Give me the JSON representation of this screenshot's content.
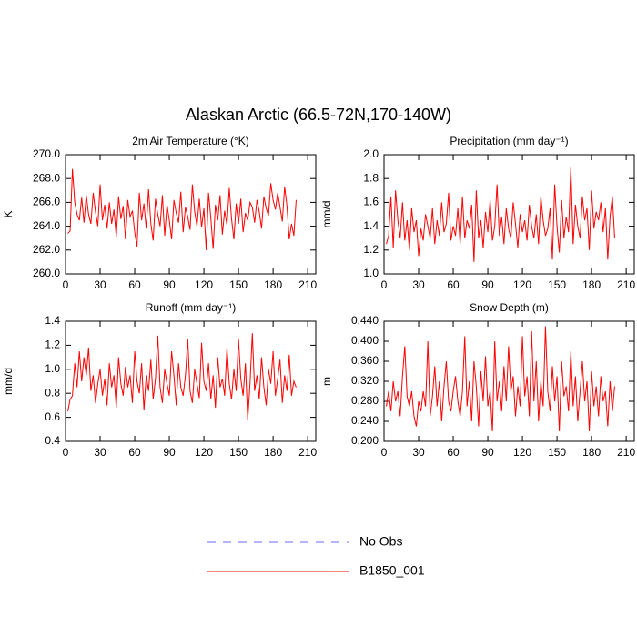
{
  "title": "Alaskan Arctic (66.5-72N,170-140W)",
  "legend": [
    {
      "name": "No Obs",
      "color": "#6a6aff",
      "dash": true
    },
    {
      "name": "B1850_001",
      "color": "#ff0000",
      "dash": false
    }
  ],
  "chart_data": [
    {
      "type": "line",
      "title": "2m Air Temperature (°K)",
      "ylabel": "K",
      "xlim": [
        0,
        217
      ],
      "xticks": [
        0,
        30,
        60,
        90,
        120,
        150,
        180,
        210
      ],
      "ylim": [
        260,
        270
      ],
      "yticks": [
        {
          "value": 260,
          "label": "260.0"
        },
        {
          "value": 262,
          "label": "262.0"
        },
        {
          "value": 264,
          "label": "264.0"
        },
        {
          "value": 266,
          "label": "266.0"
        },
        {
          "value": 268,
          "label": "268.0"
        },
        {
          "value": 270,
          "label": "270.0"
        }
      ],
      "x": [
        2,
        4,
        6,
        8,
        10,
        12,
        14,
        16,
        18,
        20,
        22,
        24,
        26,
        28,
        30,
        32,
        34,
        36,
        38,
        40,
        42,
        44,
        46,
        48,
        50,
        52,
        54,
        56,
        58,
        60,
        62,
        64,
        66,
        68,
        70,
        72,
        74,
        76,
        78,
        80,
        82,
        84,
        86,
        88,
        90,
        92,
        94,
        96,
        98,
        100,
        102,
        104,
        106,
        108,
        110,
        112,
        114,
        116,
        118,
        120,
        122,
        124,
        126,
        128,
        130,
        132,
        134,
        136,
        138,
        140,
        142,
        144,
        146,
        148,
        150,
        152,
        154,
        156,
        158,
        160,
        162,
        164,
        166,
        168,
        170,
        172,
        174,
        176,
        178,
        180,
        182,
        184,
        186,
        188,
        190,
        192,
        194,
        196,
        198,
        200
      ],
      "series": [
        {
          "color": "#ff0000",
          "values": [
            263.4,
            263.6,
            268.8,
            266.0,
            265.0,
            264.5,
            266.4,
            264.3,
            266.6,
            265.0,
            264.2,
            266.8,
            265.2,
            264.0,
            267.5,
            264.5,
            265.8,
            263.8,
            266.0,
            264.2,
            265.4,
            263.1,
            266.5,
            264.6,
            265.7,
            262.9,
            266.2,
            264.8,
            265.3,
            263.5,
            262.3,
            266.8,
            264.5,
            265.9,
            263.8,
            267.1,
            264.2,
            262.8,
            266.3,
            265.0,
            264.0,
            266.6,
            263.2,
            265.8,
            264.5,
            262.9,
            266.2,
            265.1,
            264.3,
            266.9,
            263.5,
            265.6,
            264.8,
            263.7,
            267.5,
            265.2,
            264.0,
            266.3,
            263.9,
            265.5,
            262.0,
            266.8,
            264.7,
            262.1,
            265.8,
            264.5,
            266.6,
            263.3,
            265.3,
            264.1,
            267.2,
            264.6,
            262.9,
            265.9,
            264.2,
            266.3,
            263.5,
            265.1,
            264.5,
            266.0,
            265.6,
            264.3,
            266.2,
            265.2,
            263.8,
            266.5,
            265.5,
            264.9,
            267.6,
            266.2,
            265.4,
            266.8,
            265.6,
            264.4,
            267.3,
            265.7,
            262.9,
            264.2,
            263.2,
            266.2
          ]
        }
      ]
    },
    {
      "type": "line",
      "title": "Precipitation (mm day⁻¹)",
      "ylabel": "mm/d",
      "xlim": [
        0,
        217
      ],
      "xticks": [
        0,
        30,
        60,
        90,
        120,
        150,
        180,
        210
      ],
      "ylim": [
        1,
        2
      ],
      "yticks": [
        {
          "value": 1,
          "label": "1.0"
        },
        1.2,
        1.4,
        1.6,
        1.8,
        {
          "value": 2,
          "label": "2.0"
        }
      ],
      "x": [
        2,
        4,
        6,
        8,
        10,
        12,
        14,
        16,
        18,
        20,
        22,
        24,
        26,
        28,
        30,
        32,
        34,
        36,
        38,
        40,
        42,
        44,
        46,
        48,
        50,
        52,
        54,
        56,
        58,
        60,
        62,
        64,
        66,
        68,
        70,
        72,
        74,
        76,
        78,
        80,
        82,
        84,
        86,
        88,
        90,
        92,
        94,
        96,
        98,
        100,
        102,
        104,
        106,
        108,
        110,
        112,
        114,
        116,
        118,
        120,
        122,
        124,
        126,
        128,
        130,
        132,
        134,
        136,
        138,
        140,
        142,
        144,
        146,
        148,
        150,
        152,
        154,
        156,
        158,
        160,
        162,
        164,
        166,
        168,
        170,
        172,
        174,
        176,
        178,
        180,
        182,
        184,
        186,
        188,
        190,
        192,
        194,
        196,
        198,
        200
      ],
      "series": [
        {
          "color": "#ff0000",
          "values": [
            1.25,
            1.32,
            1.65,
            1.22,
            1.7,
            1.45,
            1.3,
            1.6,
            1.28,
            1.45,
            1.2,
            1.55,
            1.35,
            1.45,
            1.15,
            1.38,
            1.28,
            1.5,
            1.4,
            1.3,
            1.55,
            1.25,
            1.45,
            1.32,
            1.6,
            1.35,
            1.42,
            1.68,
            1.28,
            1.4,
            1.32,
            1.55,
            1.25,
            1.65,
            1.3,
            1.45,
            1.38,
            1.58,
            1.1,
            1.7,
            1.3,
            1.45,
            1.22,
            1.52,
            1.35,
            1.62,
            1.28,
            1.4,
            1.75,
            1.32,
            1.48,
            1.25,
            1.55,
            1.38,
            1.3,
            1.6,
            1.42,
            1.22,
            1.5,
            1.35,
            1.45,
            1.28,
            1.58,
            1.4,
            1.3,
            1.5,
            1.25,
            1.65,
            1.45,
            1.32,
            1.38,
            1.55,
            1.12,
            1.75,
            1.4,
            1.18,
            1.62,
            1.3,
            1.48,
            1.35,
            1.9,
            1.25,
            1.58,
            1.4,
            1.3,
            1.65,
            1.45,
            1.55,
            1.2,
            1.7,
            1.38,
            1.52,
            1.45,
            1.6,
            1.35,
            1.55,
            1.12,
            1.48,
            1.65,
            1.3
          ]
        }
      ]
    },
    {
      "type": "line",
      "title": "Runoff (mm day⁻¹)",
      "ylabel": "mm/d",
      "xlim": [
        0,
        217
      ],
      "xticks": [
        0,
        30,
        60,
        90,
        120,
        150,
        180,
        210
      ],
      "ylim": [
        0.4,
        1.4
      ],
      "yticks": [
        0.4,
        0.6,
        0.8,
        {
          "value": 1,
          "label": "1.0"
        },
        1.2,
        1.4
      ],
      "x": [
        2,
        4,
        6,
        8,
        10,
        12,
        14,
        16,
        18,
        20,
        22,
        24,
        26,
        28,
        30,
        32,
        34,
        36,
        38,
        40,
        42,
        44,
        46,
        48,
        50,
        52,
        54,
        56,
        58,
        60,
        62,
        64,
        66,
        68,
        70,
        72,
        74,
        76,
        78,
        80,
        82,
        84,
        86,
        88,
        90,
        92,
        94,
        96,
        98,
        100,
        102,
        104,
        106,
        108,
        110,
        112,
        114,
        116,
        118,
        120,
        122,
        124,
        126,
        128,
        130,
        132,
        134,
        136,
        138,
        140,
        142,
        144,
        146,
        148,
        150,
        152,
        154,
        156,
        158,
        160,
        162,
        164,
        166,
        168,
        170,
        172,
        174,
        176,
        178,
        180,
        182,
        184,
        186,
        188,
        190,
        192,
        194,
        196,
        198,
        200
      ],
      "series": [
        {
          "color": "#ff0000",
          "values": [
            0.65,
            0.75,
            0.78,
            1.05,
            0.85,
            1.15,
            0.9,
            1.1,
            0.95,
            1.18,
            0.82,
            0.95,
            0.72,
            0.88,
            1.0,
            0.78,
            0.92,
            0.7,
            1.05,
            0.85,
            0.95,
            0.68,
            1.1,
            0.88,
            0.78,
            1.02,
            0.85,
            0.95,
            0.72,
            1.15,
            0.9,
            0.8,
            1.05,
            0.66,
            0.95,
            0.82,
            1.08,
            0.75,
            0.92,
            1.28,
            0.85,
            0.72,
            1.0,
            0.88,
            0.78,
            1.15,
            0.95,
            0.7,
            1.05,
            0.85,
            0.78,
            0.95,
            1.25,
            0.82,
            0.72,
            1.0,
            0.88,
            0.76,
            1.22,
            0.9,
            0.82,
            1.05,
            0.75,
            0.95,
            0.68,
            1.1,
            0.85,
            0.92,
            0.78,
            1.18,
            0.88,
            0.75,
            1.0,
            0.82,
            1.25,
            0.92,
            0.78,
            1.05,
            0.58,
            0.88,
            1.3,
            0.82,
            0.95,
            0.75,
            1.1,
            0.85,
            0.7,
            1.0,
            0.88,
            1.15,
            0.78,
            0.92,
            1.08,
            0.72,
            0.95,
            0.82,
            1.12,
            0.78,
            0.9,
            0.85
          ]
        }
      ]
    },
    {
      "type": "line",
      "title": "Snow Depth (m)",
      "ylabel": "m",
      "xlim": [
        0,
        217
      ],
      "xticks": [
        0,
        30,
        60,
        90,
        120,
        150,
        180,
        210
      ],
      "ylim": [
        0.2,
        0.44
      ],
      "yticks": [
        {
          "value": 0.2,
          "label": "0.200"
        },
        {
          "value": 0.24,
          "label": "0.240"
        },
        {
          "value": 0.28,
          "label": "0.280"
        },
        {
          "value": 0.32,
          "label": "0.320"
        },
        {
          "value": 0.36,
          "label": "0.360"
        },
        {
          "value": 0.4,
          "label": "0.400"
        },
        {
          "value": 0.44,
          "label": "0.440"
        }
      ],
      "x": [
        2,
        4,
        6,
        8,
        10,
        12,
        14,
        16,
        18,
        20,
        22,
        24,
        26,
        28,
        30,
        32,
        34,
        36,
        38,
        40,
        42,
        44,
        46,
        48,
        50,
        52,
        54,
        56,
        58,
        60,
        62,
        64,
        66,
        68,
        70,
        72,
        74,
        76,
        78,
        80,
        82,
        84,
        86,
        88,
        90,
        92,
        94,
        96,
        98,
        100,
        102,
        104,
        106,
        108,
        110,
        112,
        114,
        116,
        118,
        120,
        122,
        124,
        126,
        128,
        130,
        132,
        134,
        136,
        138,
        140,
        142,
        144,
        146,
        148,
        150,
        152,
        154,
        156,
        158,
        160,
        162,
        164,
        166,
        168,
        170,
        172,
        174,
        176,
        178,
        180,
        182,
        184,
        186,
        188,
        190,
        192,
        194,
        196,
        198,
        200
      ],
      "series": [
        {
          "color": "#ff0000",
          "values": [
            0.27,
            0.3,
            0.26,
            0.32,
            0.28,
            0.3,
            0.25,
            0.33,
            0.39,
            0.29,
            0.27,
            0.3,
            0.25,
            0.23,
            0.28,
            0.26,
            0.3,
            0.27,
            0.4,
            0.25,
            0.29,
            0.35,
            0.27,
            0.32,
            0.24,
            0.31,
            0.36,
            0.28,
            0.26,
            0.3,
            0.33,
            0.28,
            0.25,
            0.3,
            0.41,
            0.27,
            0.32,
            0.24,
            0.36,
            0.31,
            0.23,
            0.34,
            0.28,
            0.37,
            0.27,
            0.3,
            0.22,
            0.4,
            0.28,
            0.32,
            0.26,
            0.35,
            0.28,
            0.39,
            0.3,
            0.33,
            0.25,
            0.31,
            0.27,
            0.41,
            0.29,
            0.33,
            0.25,
            0.42,
            0.28,
            0.36,
            0.24,
            0.32,
            0.27,
            0.43,
            0.3,
            0.26,
            0.35,
            0.28,
            0.33,
            0.22,
            0.36,
            0.29,
            0.31,
            0.26,
            0.38,
            0.27,
            0.33,
            0.24,
            0.3,
            0.36,
            0.28,
            0.32,
            0.22,
            0.34,
            0.27,
            0.31,
            0.25,
            0.33,
            0.28,
            0.3,
            0.23,
            0.32,
            0.26,
            0.31
          ]
        }
      ]
    }
  ]
}
